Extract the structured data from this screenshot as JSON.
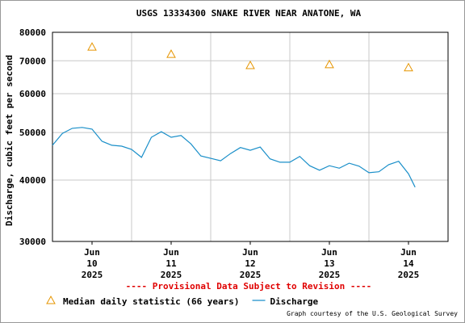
{
  "chart_data": {
    "type": "line",
    "title": "USGS 13334300 SNAKE RIVER NEAR ANATONE, WA",
    "subtitle": "---- Provisional Data Subject to Revision ----",
    "credit": "Graph courtesy of the U.S. Geological Survey",
    "y_label": "Discharge, cubic feet per second",
    "log_y": true,
    "grid": true,
    "ylim": [
      30000,
      80000
    ],
    "yticks": [
      30000,
      40000,
      50000,
      60000,
      70000,
      80000
    ],
    "xlim": [
      "2025-06-10T00:00",
      "2025-06-15T00:00"
    ],
    "xticks": [
      {
        "value": "2025-06-10T12:00",
        "label": "Jun 10 2025"
      },
      {
        "value": "2025-06-11T12:00",
        "label": "Jun 11 2025"
      },
      {
        "value": "2025-06-12T12:00",
        "label": "Jun 12 2025"
      },
      {
        "value": "2025-06-13T12:00",
        "label": "Jun 13 2025"
      },
      {
        "value": "2025-06-14T12:00",
        "label": "Jun 14 2025"
      }
    ],
    "xgrid": [
      "2025-06-11T00:00",
      "2025-06-12T00:00",
      "2025-06-13T00:00",
      "2025-06-14T00:00"
    ],
    "series": [
      {
        "name": "Median daily statistic (66 years)",
        "type": "scatter",
        "marker": "triangle",
        "color": "#e69500",
        "x": [
          "2025-06-10T12:00",
          "2025-06-11T12:00",
          "2025-06-12T12:00",
          "2025-06-13T12:00",
          "2025-06-14T12:00"
        ],
        "values": [
          74700,
          72200,
          68500,
          68800,
          67800
        ]
      },
      {
        "name": "Discharge",
        "type": "line",
        "color": "#1a8fc9",
        "x": [
          "2025-06-10T00:00",
          "2025-06-10T03:00",
          "2025-06-10T06:00",
          "2025-06-10T09:00",
          "2025-06-10T12:00",
          "2025-06-10T15:00",
          "2025-06-10T18:00",
          "2025-06-10T21:00",
          "2025-06-11T00:00",
          "2025-06-11T03:00",
          "2025-06-11T06:00",
          "2025-06-11T09:00",
          "2025-06-11T12:00",
          "2025-06-11T15:00",
          "2025-06-11T18:00",
          "2025-06-11T21:00",
          "2025-06-12T00:00",
          "2025-06-12T03:00",
          "2025-06-12T06:00",
          "2025-06-12T09:00",
          "2025-06-12T12:00",
          "2025-06-12T15:00",
          "2025-06-12T18:00",
          "2025-06-12T21:00",
          "2025-06-13T00:00",
          "2025-06-13T03:00",
          "2025-06-13T06:00",
          "2025-06-13T09:00",
          "2025-06-13T12:00",
          "2025-06-13T15:00",
          "2025-06-13T18:00",
          "2025-06-13T21:00",
          "2025-06-14T00:00",
          "2025-06-14T03:00",
          "2025-06-14T06:00",
          "2025-06-14T09:00",
          "2025-06-14T12:00",
          "2025-06-14T14:00"
        ],
        "values": [
          47100,
          49800,
          51000,
          51200,
          50800,
          48000,
          47100,
          46900,
          46200,
          44500,
          48900,
          50200,
          48900,
          49300,
          47400,
          44800,
          44300,
          43800,
          45300,
          46600,
          46000,
          46700,
          44200,
          43500,
          43500,
          44700,
          42800,
          41900,
          42800,
          42300,
          43300,
          42700,
          41400,
          41600,
          43000,
          43700,
          41200,
          38700
        ]
      }
    ]
  }
}
